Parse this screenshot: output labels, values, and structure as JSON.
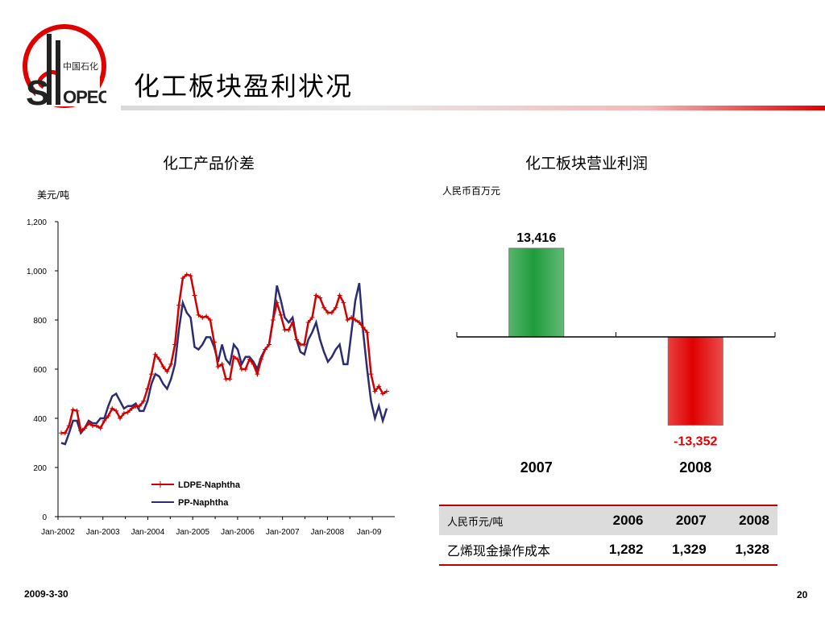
{
  "header": {
    "logo_text": "SINOPEC",
    "logo_chinese": "中国石化",
    "title": "化工板块盈利状况"
  },
  "colors": {
    "brand_red": "#e00000",
    "ldpe": "#d10000",
    "pp": "#2c2c6e",
    "bar_up": "#1f9c3c",
    "bar_down": "#e00000"
  },
  "left_panel": {
    "title": "化工产品价差",
    "unit": "美元/吨"
  },
  "right_panel": {
    "title": "化工板块营业利润",
    "unit": "人民币百万元"
  },
  "chart_data": [
    {
      "type": "line",
      "title": "化工产品价差",
      "ylabel": "美元/吨",
      "ylim": [
        0,
        1200
      ],
      "yticks": [
        0,
        200,
        400,
        600,
        800,
        1000,
        1200
      ],
      "ytick_labels": [
        "0",
        "200",
        "400",
        "600",
        "800",
        "1,000",
        "1,200"
      ],
      "xticks": [
        "Jan-2002",
        "Jan-2003",
        "Jan-2004",
        "Jan-2005",
        "Jan-2006",
        "Jan-2007",
        "Jan-2008",
        "Jan-09"
      ],
      "x_start": "Jan-2002",
      "legend_position": "bottom-center",
      "series": [
        {
          "name": "LDPE-Naphtha",
          "color": "#d10000",
          "marker": "plus",
          "values": [
            340,
            340,
            370,
            435,
            430,
            350,
            360,
            380,
            370,
            370,
            360,
            390,
            410,
            440,
            430,
            400,
            420,
            425,
            440,
            450,
            450,
            470,
            520,
            580,
            660,
            640,
            610,
            590,
            620,
            700,
            860,
            970,
            985,
            980,
            900,
            820,
            810,
            815,
            800,
            710,
            610,
            620,
            560,
            560,
            650,
            640,
            600,
            600,
            640,
            620,
            580,
            640,
            680,
            700,
            800,
            870,
            820,
            760,
            760,
            790,
            720,
            700,
            700,
            790,
            810,
            900,
            890,
            850,
            830,
            830,
            850,
            900,
            870,
            800,
            810,
            800,
            790,
            770,
            750,
            580,
            510,
            530,
            500,
            510
          ]
        },
        {
          "name": "PP-Naphtha",
          "color": "#2c2c6e",
          "values": [
            300,
            295,
            340,
            390,
            390,
            340,
            360,
            390,
            380,
            380,
            400,
            400,
            450,
            490,
            500,
            470,
            440,
            450,
            450,
            460,
            430,
            430,
            470,
            540,
            580,
            570,
            540,
            520,
            560,
            620,
            760,
            870,
            830,
            810,
            690,
            680,
            700,
            730,
            730,
            690,
            630,
            700,
            640,
            620,
            700,
            680,
            620,
            650,
            650,
            630,
            600,
            650,
            680,
            700,
            800,
            940,
            880,
            810,
            790,
            810,
            720,
            670,
            660,
            720,
            750,
            790,
            720,
            670,
            630,
            650,
            680,
            700,
            620,
            620,
            750,
            880,
            950,
            750,
            600,
            470,
            400,
            450,
            390,
            440
          ]
        }
      ]
    },
    {
      "type": "bar",
      "title": "化工板块营业利润",
      "ylabel": "人民币百万元",
      "categories": [
        "2007",
        "2008"
      ],
      "values": [
        13416,
        -13352
      ],
      "value_labels": [
        "13,416",
        "-13,352"
      ],
      "colors": [
        "#1f9c3c",
        "#e00000"
      ]
    }
  ],
  "table": {
    "header_label": "人民币元/吨",
    "years": [
      "2006",
      "2007",
      "2008"
    ],
    "rows": [
      {
        "label": "乙烯现金操作成本",
        "values": [
          "1,282",
          "1,329",
          "1,328"
        ]
      }
    ]
  },
  "footer": {
    "date": "2009-3-30",
    "page": "20"
  }
}
